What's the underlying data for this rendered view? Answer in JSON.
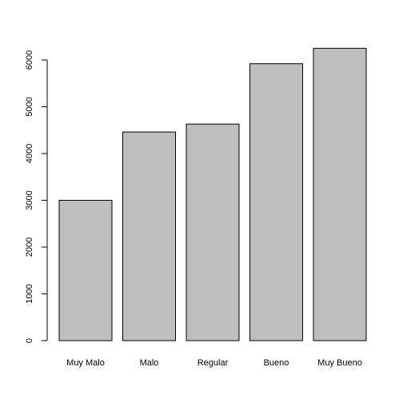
{
  "chart_data": {
    "type": "bar",
    "categories": [
      "Muy Malo",
      "Malo",
      "Regular",
      "Bueno",
      "Muy Bueno"
    ],
    "values": [
      3000,
      4460,
      4630,
      5920,
      6250
    ],
    "title": "",
    "xlabel": "",
    "ylabel": "",
    "ylim": [
      0,
      6000
    ],
    "yticks": [
      "0",
      "1000",
      "2000",
      "3000",
      "4000",
      "5000",
      "6000"
    ],
    "grid": false,
    "bar_color": "#bebebe",
    "bar_stroke": "#000000"
  }
}
